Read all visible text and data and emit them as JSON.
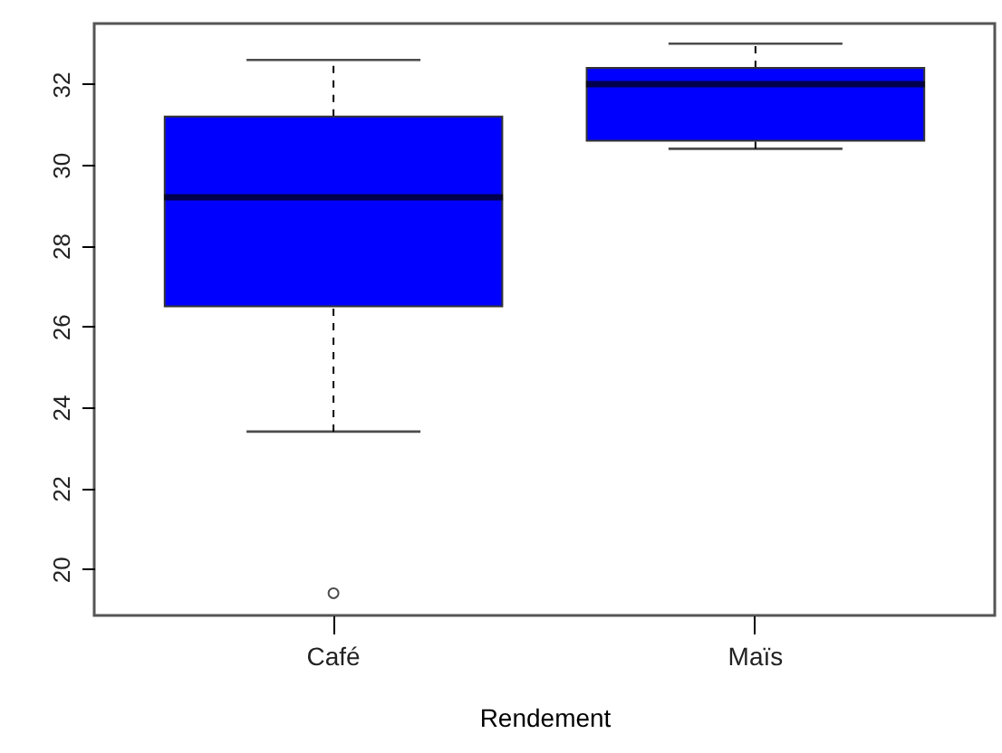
{
  "chart_data": {
    "type": "box",
    "xlabel": "Rendement",
    "categories": [
      "Café",
      "Maïs"
    ],
    "series": [
      {
        "color": "#0000ff",
        "boxes": [
          {
            "low": 23.4,
            "q1": 26.5,
            "median": 29.2,
            "q3": 31.2,
            "high": 32.6,
            "outliers": [
              19.4
            ]
          },
          {
            "low": 30.4,
            "q1": 30.6,
            "median": 32.0,
            "q3": 32.4,
            "high": 33.0
          }
        ]
      }
    ],
    "ylim": [
      18.85,
      33.5
    ],
    "yticks": [
      20,
      22,
      24,
      26,
      28,
      30,
      32
    ],
    "grid": false
  }
}
